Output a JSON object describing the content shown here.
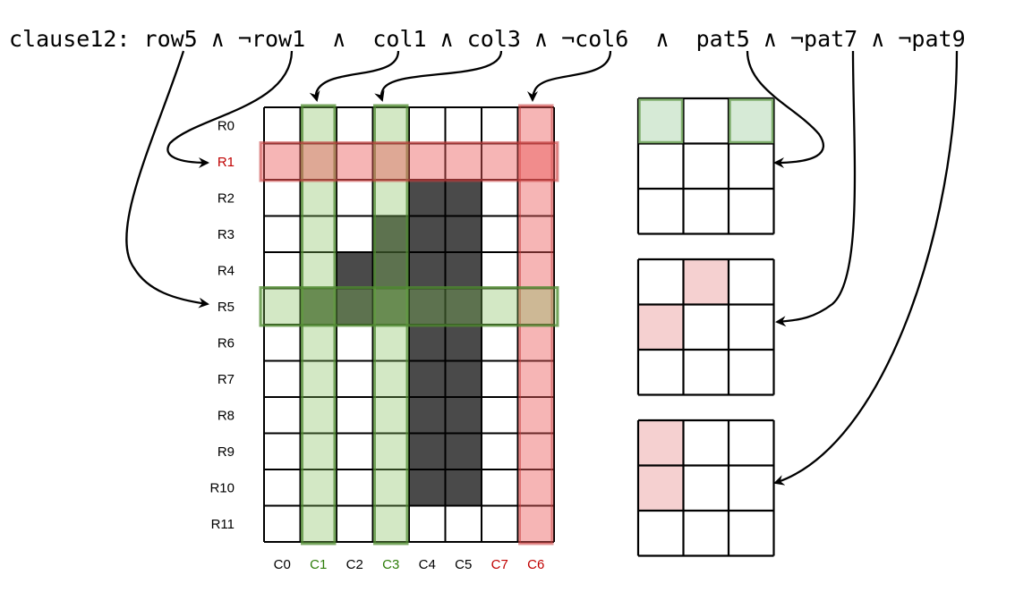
{
  "clause": "clause12: row5 ∧ ¬row1  ∧  col1 ∧ col3 ∧ ¬col6  ∧  pat5 ∧ ¬pat7 ∧ ¬pat9",
  "row_labels": [
    "R0",
    "R1",
    "R2",
    "R3",
    "R4",
    "R5",
    "R6",
    "R7",
    "R8",
    "R9",
    "R10",
    "R11"
  ],
  "col_labels": [
    "C0",
    "C1",
    "C2",
    "C3",
    "C4",
    "C5",
    "C7",
    "C6"
  ],
  "label_colors": {
    "default": "#000000",
    "positive": "#2e7d0a",
    "negative": "#c00000"
  },
  "positive_rows": [
    5
  ],
  "negative_rows": [
    1
  ],
  "positive_cols": [
    1,
    3
  ],
  "negative_cols": [
    7
  ],
  "filled_cells": [
    [
      2,
      4
    ],
    [
      2,
      5
    ],
    [
      3,
      3
    ],
    [
      3,
      4
    ],
    [
      3,
      5
    ],
    [
      4,
      2
    ],
    [
      4,
      3
    ],
    [
      4,
      4
    ],
    [
      4,
      5
    ],
    [
      5,
      1
    ],
    [
      5,
      2
    ],
    [
      5,
      3
    ],
    [
      5,
      4
    ],
    [
      5,
      5
    ],
    [
      6,
      4
    ],
    [
      6,
      5
    ],
    [
      7,
      4
    ],
    [
      7,
      5
    ],
    [
      8,
      4
    ],
    [
      8,
      5
    ],
    [
      9,
      4
    ],
    [
      9,
      5
    ],
    [
      10,
      4
    ],
    [
      10,
      5
    ]
  ],
  "patterns": [
    {
      "id": "pat5",
      "green_cells": [
        [
          0,
          0
        ],
        [
          0,
          2
        ]
      ],
      "red_cells": []
    },
    {
      "id": "pat7",
      "green_cells": [],
      "red_cells": [
        [
          0,
          1
        ],
        [
          1,
          0
        ]
      ]
    },
    {
      "id": "pat9",
      "green_cells": [],
      "red_cells": [
        [
          0,
          0
        ],
        [
          1,
          0
        ]
      ]
    }
  ],
  "colors": {
    "fill": "#4a4a4a",
    "green": "rgba(130,190,90,0.35)",
    "green_stroke": "rgba(80,140,50,0.75)",
    "red": "rgba(236,90,90,0.45)",
    "red_stroke": "rgba(200,60,60,0.55)",
    "pat_green": "#d6ead6",
    "pat_red": "#f5d0d0"
  }
}
